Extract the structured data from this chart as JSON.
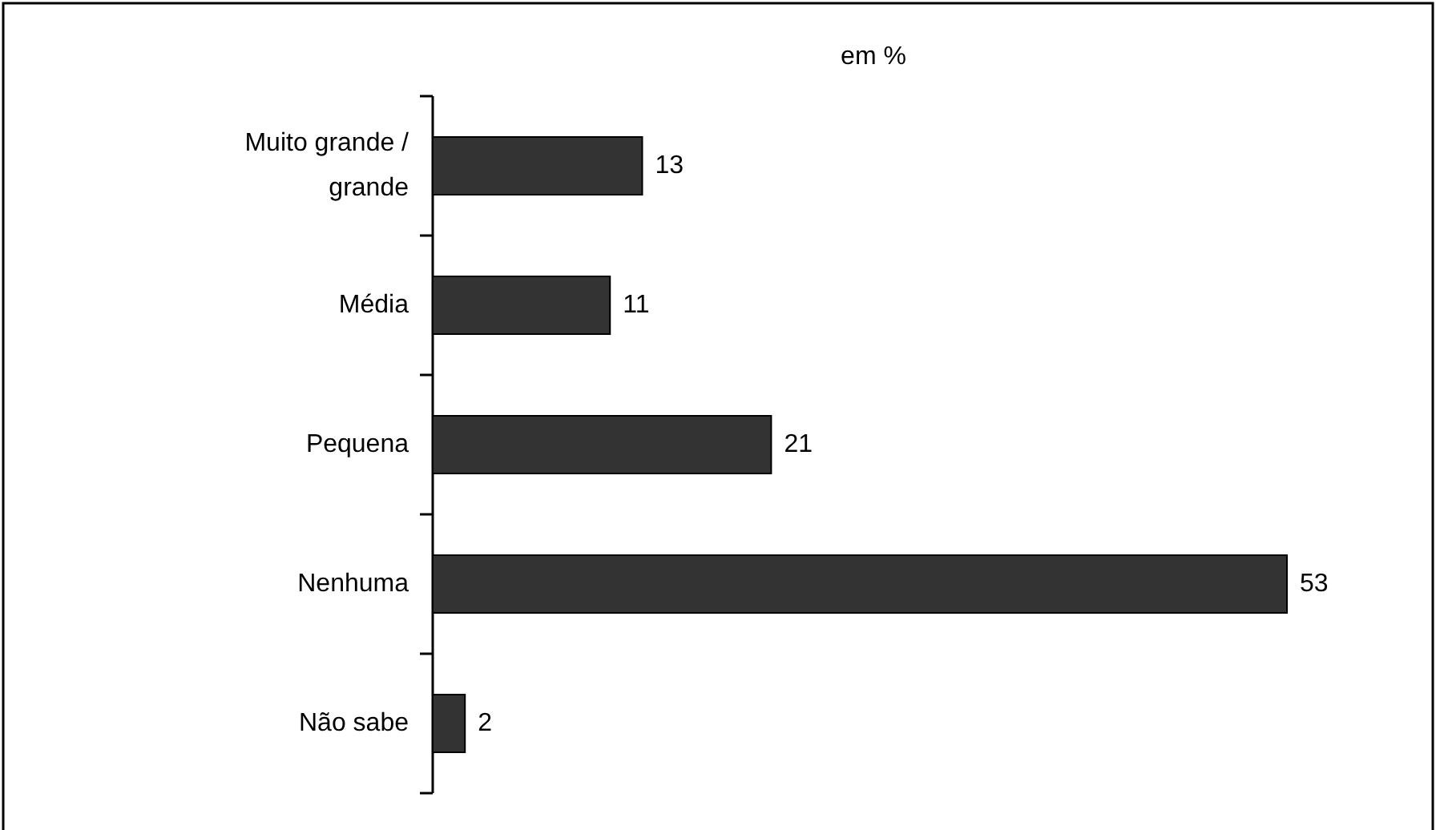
{
  "chart_data": {
    "type": "bar",
    "orientation": "horizontal",
    "categories": [
      "Muito grande / grande",
      "Média",
      "Pequena",
      "Nenhuma",
      "Não sabe"
    ],
    "values": [
      13,
      11,
      21,
      53,
      2
    ],
    "color": "#333333",
    "data_labels": true,
    "annotations": [
      "em %"
    ]
  }
}
